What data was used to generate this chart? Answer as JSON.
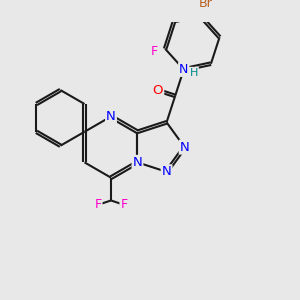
{
  "background_color": "#e8e8e8",
  "bond_color": "#1a1a1a",
  "N_color": "#0000ff",
  "O_color": "#ff0000",
  "F_color": "#ff00cc",
  "Br_color": "#b86020",
  "H_color": "#008888",
  "line_width": 1.5,
  "font_size": 9.5,
  "xlim": [
    0,
    10
  ],
  "ylim": [
    0,
    10
  ]
}
